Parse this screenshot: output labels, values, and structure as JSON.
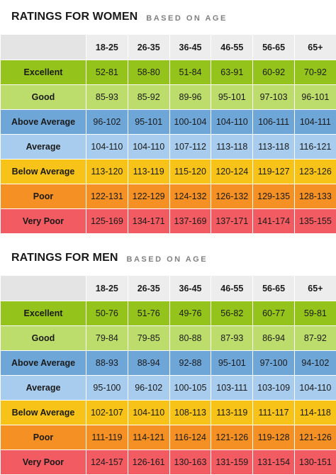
{
  "colors": {
    "excellent": "#94c41c",
    "good": "#bcdc6c",
    "above_average": "#6ea6d8",
    "average": "#a8cced",
    "below_average": "#f8c319",
    "poor": "#f59024",
    "very_poor": "#f25b61"
  },
  "age_groups": [
    "18-25",
    "26-35",
    "36-45",
    "46-55",
    "56-65",
    "65+"
  ],
  "women": {
    "title": "RATINGS FOR WOMEN",
    "subtitle": "BASED ON AGE",
    "rows": [
      {
        "label": "Excellent",
        "values": [
          "52-81",
          "58-80",
          "51-84",
          "63-91",
          "60-92",
          "70-92"
        ]
      },
      {
        "label": "Good",
        "values": [
          "85-93",
          "85-92",
          "89-96",
          "95-101",
          "97-103",
          "96-101"
        ]
      },
      {
        "label": "Above Average",
        "values": [
          "96-102",
          "95-101",
          "100-104",
          "104-110",
          "106-111",
          "104-111"
        ]
      },
      {
        "label": "Average",
        "values": [
          "104-110",
          "104-110",
          "107-112",
          "113-118",
          "113-118",
          "116-121"
        ]
      },
      {
        "label": "Below Average",
        "values": [
          "113-120",
          "113-119",
          "115-120",
          "120-124",
          "119-127",
          "123-126"
        ]
      },
      {
        "label": "Poor",
        "values": [
          "122-131",
          "122-129",
          "124-132",
          "126-132",
          "129-135",
          "128-133"
        ]
      },
      {
        "label": "Very Poor",
        "values": [
          "125-169",
          "134-171",
          "137-169",
          "137-171",
          "141-174",
          "135-155"
        ]
      }
    ]
  },
  "men": {
    "title": "RATINGS FOR MEN",
    "subtitle": "BASED ON AGE",
    "rows": [
      {
        "label": "Excellent",
        "values": [
          "50-76",
          "51-76",
          "49-76",
          "56-82",
          "60-77",
          "59-81"
        ]
      },
      {
        "label": "Good",
        "values": [
          "79-84",
          "79-85",
          "80-88",
          "87-93",
          "86-94",
          "87-92"
        ]
      },
      {
        "label": "Above Average",
        "values": [
          "88-93",
          "88-94",
          "92-88",
          "95-101",
          "97-100",
          "94-102"
        ]
      },
      {
        "label": "Average",
        "values": [
          "95-100",
          "96-102",
          "100-105",
          "103-111",
          "103-109",
          "104-110"
        ]
      },
      {
        "label": "Below Average",
        "values": [
          "102-107",
          "104-110",
          "108-113",
          "113-119",
          "111-117",
          "114-118"
        ]
      },
      {
        "label": "Poor",
        "values": [
          "111-119",
          "114-121",
          "116-124",
          "121-126",
          "119-128",
          "121-126"
        ]
      },
      {
        "label": "Very Poor",
        "values": [
          "124-157",
          "126-161",
          "130-163",
          "131-159",
          "131-154",
          "130-151"
        ]
      }
    ]
  }
}
